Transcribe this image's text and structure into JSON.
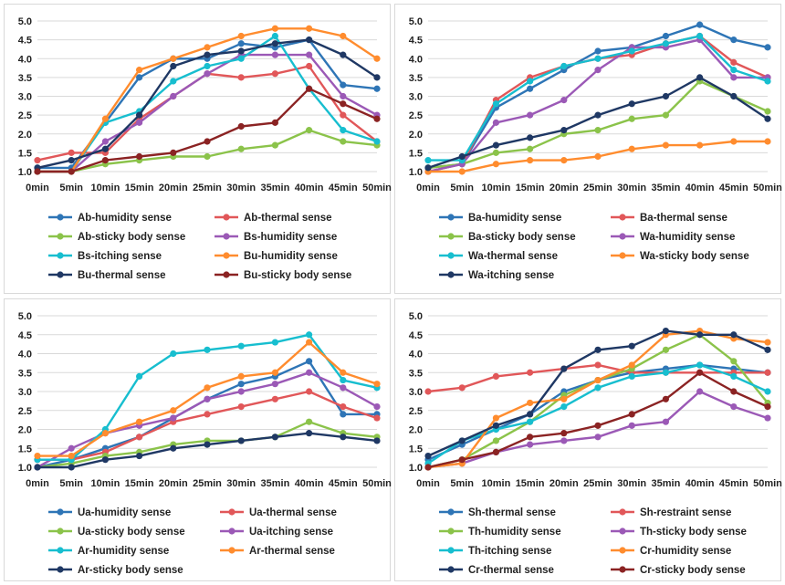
{
  "chart_data": [
    {
      "type": "line",
      "categories": [
        "0min",
        "5min",
        "10min",
        "15min",
        "20min",
        "25min",
        "30min",
        "35min",
        "40min",
        "45min",
        "50min"
      ],
      "ylim": [
        1.0,
        5.0
      ],
      "yticks": [
        "1.0",
        "1.5",
        "2.0",
        "2.5",
        "3.0",
        "3.5",
        "4.0",
        "4.5",
        "5.0"
      ],
      "grid": true,
      "legend_position": "bottom",
      "series": [
        {
          "name": "Ab-humidity sense",
          "color": "#2e75b6",
          "values": [
            1.1,
            1.1,
            2.3,
            3.5,
            4.0,
            4.0,
            4.4,
            4.3,
            4.5,
            3.3,
            3.2
          ]
        },
        {
          "name": "Ab-thermal sense",
          "color": "#e15759",
          "values": [
            1.3,
            1.5,
            1.5,
            2.4,
            3.0,
            3.6,
            3.5,
            3.6,
            3.8,
            2.5,
            1.8
          ]
        },
        {
          "name": "Ab-sticky body sense",
          "color": "#8bc34a",
          "values": [
            1.0,
            1.0,
            1.2,
            1.3,
            1.4,
            1.4,
            1.6,
            1.7,
            2.1,
            1.8,
            1.7
          ]
        },
        {
          "name": "Bs-humidity sense",
          "color": "#9b59b6",
          "values": [
            1.0,
            1.0,
            1.8,
            2.3,
            3.0,
            3.6,
            4.1,
            4.1,
            4.1,
            3.0,
            2.5
          ]
        },
        {
          "name": "Bs-itching sense",
          "color": "#17becf",
          "values": [
            1.0,
            1.0,
            2.3,
            2.6,
            3.4,
            3.8,
            4.0,
            4.6,
            3.2,
            2.1,
            1.8
          ]
        },
        {
          "name": "Bu-humidity sense",
          "color": "#ff8c2e",
          "values": [
            1.0,
            1.0,
            2.4,
            3.7,
            4.0,
            4.3,
            4.6,
            4.8,
            4.8,
            4.6,
            4.0
          ]
        },
        {
          "name": "Bu-thermal sense",
          "color": "#1f3864",
          "values": [
            1.1,
            1.3,
            1.6,
            2.5,
            3.8,
            4.1,
            4.2,
            4.4,
            4.5,
            4.1,
            3.5
          ]
        },
        {
          "name": "Bu-sticky body sense",
          "color": "#8b2323",
          "values": [
            1.0,
            1.0,
            1.3,
            1.4,
            1.5,
            1.8,
            2.2,
            2.3,
            3.2,
            2.8,
            2.4
          ]
        }
      ]
    },
    {
      "type": "line",
      "categories": [
        "0min",
        "5min",
        "10min",
        "15min",
        "20min",
        "25min",
        "30min",
        "35min",
        "40min",
        "45min",
        "50min"
      ],
      "ylim": [
        1.0,
        5.0
      ],
      "yticks": [
        "1.0",
        "1.5",
        "2.0",
        "2.5",
        "3.0",
        "3.5",
        "4.0",
        "4.5",
        "5.0"
      ],
      "grid": true,
      "legend_position": "bottom",
      "series": [
        {
          "name": "Ba-humidity sense",
          "color": "#2e75b6",
          "values": [
            1.1,
            1.2,
            2.7,
            3.2,
            3.7,
            4.2,
            4.3,
            4.6,
            4.9,
            4.5,
            4.3
          ]
        },
        {
          "name": "Ba-thermal sense",
          "color": "#e15759",
          "values": [
            1.0,
            1.2,
            2.9,
            3.5,
            3.8,
            4.0,
            4.1,
            4.4,
            4.6,
            3.9,
            3.5
          ]
        },
        {
          "name": "Ba-sticky body sense",
          "color": "#8bc34a",
          "values": [
            1.1,
            1.2,
            1.5,
            1.6,
            2.0,
            2.1,
            2.4,
            2.5,
            3.4,
            3.0,
            2.6
          ]
        },
        {
          "name": "Wa-humidity sense",
          "color": "#9b59b6",
          "values": [
            1.0,
            1.2,
            2.3,
            2.5,
            2.9,
            3.7,
            4.3,
            4.3,
            4.5,
            3.5,
            3.5
          ]
        },
        {
          "name": "Wa-thermal sense",
          "color": "#17becf",
          "values": [
            1.3,
            1.3,
            2.8,
            3.4,
            3.8,
            4.0,
            4.2,
            4.4,
            4.6,
            3.7,
            3.4
          ]
        },
        {
          "name": "Wa-sticky body sense",
          "color": "#ff8c2e",
          "values": [
            1.0,
            1.0,
            1.2,
            1.3,
            1.3,
            1.4,
            1.6,
            1.7,
            1.7,
            1.8,
            1.8
          ]
        },
        {
          "name": "Wa-itching sense",
          "color": "#1f3864",
          "values": [
            1.1,
            1.4,
            1.7,
            1.9,
            2.1,
            2.5,
            2.8,
            3.0,
            3.5,
            3.0,
            2.4
          ]
        }
      ]
    },
    {
      "type": "line",
      "categories": [
        "0min",
        "5min",
        "10min",
        "15min",
        "20min",
        "25min",
        "30min",
        "35min",
        "40min",
        "45min",
        "50min"
      ],
      "ylim": [
        1.0,
        5.0
      ],
      "yticks": [
        "1.0",
        "1.5",
        "2.0",
        "2.5",
        "3.0",
        "3.5",
        "4.0",
        "4.5",
        "5.0"
      ],
      "grid": true,
      "legend_position": "bottom",
      "series": [
        {
          "name": "Ua-humidity sense",
          "color": "#2e75b6",
          "values": [
            1.0,
            1.2,
            1.5,
            1.8,
            2.3,
            2.8,
            3.2,
            3.4,
            3.8,
            2.4,
            2.4
          ]
        },
        {
          "name": "Ua-thermal sense",
          "color": "#e15759",
          "values": [
            1.2,
            1.2,
            1.4,
            1.8,
            2.2,
            2.4,
            2.6,
            2.8,
            3.0,
            2.6,
            2.3
          ]
        },
        {
          "name": "Ua-sticky body sense",
          "color": "#8bc34a",
          "values": [
            1.0,
            1.1,
            1.3,
            1.4,
            1.6,
            1.7,
            1.7,
            1.8,
            2.2,
            1.9,
            1.8
          ]
        },
        {
          "name": "Ua-itching sense",
          "color": "#9b59b6",
          "values": [
            1.0,
            1.5,
            1.9,
            2.1,
            2.3,
            2.8,
            3.0,
            3.2,
            3.5,
            3.1,
            2.6
          ]
        },
        {
          "name": "Ar-humidity sense",
          "color": "#17becf",
          "values": [
            1.2,
            1.2,
            2.0,
            3.4,
            4.0,
            4.1,
            4.2,
            4.3,
            4.5,
            3.3,
            3.1
          ]
        },
        {
          "name": "Ar-thermal sense",
          "color": "#ff8c2e",
          "values": [
            1.3,
            1.3,
            1.9,
            2.2,
            2.5,
            3.1,
            3.4,
            3.5,
            4.3,
            3.5,
            3.2
          ]
        },
        {
          "name": "Ar-sticky body sense",
          "color": "#1f3864",
          "values": [
            1.0,
            1.0,
            1.2,
            1.3,
            1.5,
            1.6,
            1.7,
            1.8,
            1.9,
            1.8,
            1.7
          ]
        }
      ]
    },
    {
      "type": "line",
      "categories": [
        "0min",
        "5min",
        "10min",
        "15min",
        "20min",
        "25min",
        "30min",
        "35min",
        "40min",
        "45min",
        "50min"
      ],
      "ylim": [
        1.0,
        5.0
      ],
      "yticks": [
        "1.0",
        "1.5",
        "2.0",
        "2.5",
        "3.0",
        "3.5",
        "4.0",
        "4.5",
        "5.0"
      ],
      "grid": true,
      "legend_position": "bottom",
      "series": [
        {
          "name": "Sh-thermal sense",
          "color": "#2e75b6",
          "values": [
            1.2,
            1.6,
            2.0,
            2.4,
            3.0,
            3.3,
            3.5,
            3.6,
            3.7,
            3.6,
            3.5
          ]
        },
        {
          "name": "Sh-restraint sense",
          "color": "#e15759",
          "values": [
            3.0,
            3.1,
            3.4,
            3.5,
            3.6,
            3.7,
            3.5,
            3.5,
            3.5,
            3.5,
            3.5
          ]
        },
        {
          "name": "Th-humidity sense",
          "color": "#8bc34a",
          "values": [
            1.0,
            1.2,
            1.7,
            2.2,
            2.9,
            3.3,
            3.6,
            4.1,
            4.5,
            3.8,
            2.7
          ]
        },
        {
          "name": "Th-sticky body sense",
          "color": "#9b59b6",
          "values": [
            1.0,
            1.1,
            1.4,
            1.6,
            1.7,
            1.8,
            2.1,
            2.2,
            3.0,
            2.6,
            2.3
          ]
        },
        {
          "name": "Th-itching sense",
          "color": "#17becf",
          "values": [
            1.1,
            1.7,
            2.0,
            2.2,
            2.6,
            3.1,
            3.4,
            3.5,
            3.7,
            3.4,
            3.0
          ]
        },
        {
          "name": "Cr-humidity sense",
          "color": "#ff8c2e",
          "values": [
            1.0,
            1.1,
            2.3,
            2.7,
            2.8,
            3.3,
            3.7,
            4.5,
            4.6,
            4.4,
            4.3
          ]
        },
        {
          "name": "Cr-thermal sense",
          "color": "#1f3864",
          "values": [
            1.3,
            1.7,
            2.1,
            2.4,
            3.6,
            4.1,
            4.2,
            4.6,
            4.5,
            4.5,
            4.1
          ]
        },
        {
          "name": "Cr-sticky body sense",
          "color": "#8b2323",
          "values": [
            1.0,
            1.2,
            1.4,
            1.8,
            1.9,
            2.1,
            2.4,
            2.8,
            3.5,
            3.0,
            2.6
          ]
        }
      ]
    }
  ]
}
